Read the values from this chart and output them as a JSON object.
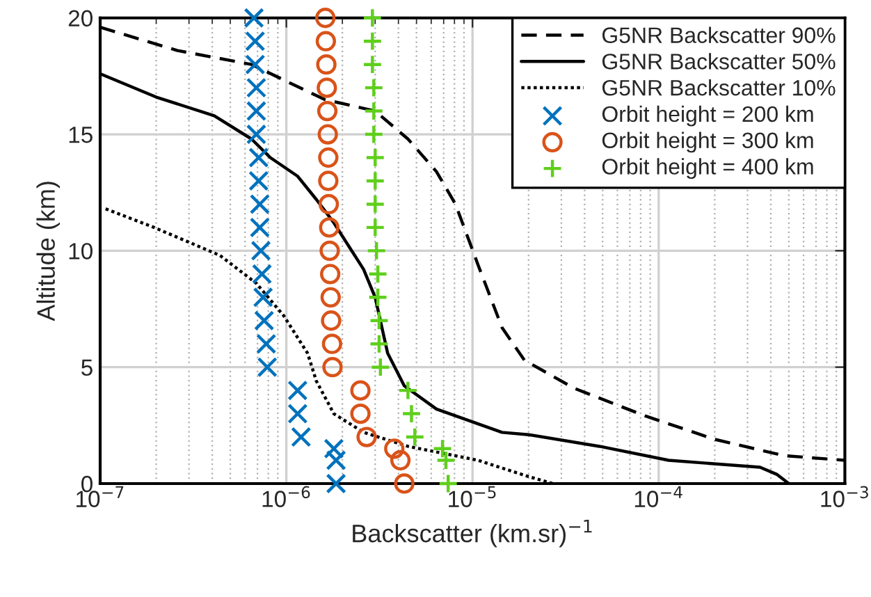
{
  "chart_data": {
    "type": "line",
    "xlabel": "Backscatter (km.sr)$^{−1}$",
    "ylabel": "Altitude (km)",
    "log": "x",
    "grid": true,
    "legend": "top right",
    "xlim": [
      1e-07,
      0.001
    ],
    "ylim": [
      0,
      20
    ],
    "xticks": [
      {
        "value": 1e-07,
        "label": "10$^{−7}$"
      },
      {
        "value": 1e-06,
        "label": "10$^{−6}$"
      },
      {
        "value": 1e-05,
        "label": "10$^{−5}$"
      },
      {
        "value": 0.0001,
        "label": "10$^{−4}$"
      },
      {
        "value": 0.001,
        "label": "10$^{−3}$"
      }
    ],
    "yticks": [
      0,
      5,
      10,
      15,
      20
    ],
    "series": [
      {
        "name": "G5NR Backscatter 90%",
        "line_style": "dashed",
        "color": "#000000",
        "x": [
          1e-07,
          2.6e-07,
          6.5e-07,
          1.6e-06,
          3e-06,
          4.5e-06,
          6.4e-06,
          8.1e-06,
          1.07e-05,
          1.44e-05,
          1.9e-05,
          3.5e-05,
          8.5e-05,
          0.0002,
          0.00047,
          0.001
        ],
        "values": [
          19.6,
          18.6,
          18,
          16.5,
          16,
          14.8,
          13.4,
          12,
          9.4,
          6.7,
          5.3,
          4.1,
          2.9,
          1.9,
          1.2,
          1.0
        ]
      },
      {
        "name": "G5NR Backscatter 50%",
        "line_style": "solid",
        "color": "#000000",
        "x": [
          1e-07,
          2e-07,
          4.1e-07,
          6.5e-07,
          8.2e-07,
          1.15e-06,
          1.45e-06,
          1.8e-06,
          2.6e-06,
          3e-06,
          3.5e-06,
          4.3e-06,
          6.4e-06,
          1.44e-05,
          2e-05,
          4.8e-05,
          0.000113,
          0.00035,
          0.00043,
          0.0005
        ],
        "values": [
          17.6,
          16.6,
          15.8,
          14.8,
          14,
          13.2,
          12.2,
          11.2,
          9.2,
          8,
          5.6,
          4.2,
          3.2,
          2.2,
          2.1,
          1.6,
          1.0,
          0.7,
          0.4,
          0
        ]
      },
      {
        "name": "G5NR Backscatter 10%",
        "line_style": "dotted",
        "color": "#000000",
        "x": [
          1.07e-07,
          1.95e-07,
          4.4e-07,
          6.9e-07,
          9.7e-07,
          1.3e-06,
          1.45e-06,
          1.8e-06,
          2.6e-06,
          4.5e-06,
          1.07e-05,
          2e-05,
          2.7e-05
        ],
        "values": [
          11.8,
          11,
          9.8,
          8.6,
          7.2,
          5.6,
          4.4,
          3,
          2.2,
          1.6,
          1.0,
          0.3,
          0
        ]
      },
      {
        "name": "Orbit height = 200 km",
        "type": "scatter",
        "marker": "cross",
        "color": "#0072bd",
        "x": [
          6.7e-07,
          6.8e-07,
          6.8e-07,
          6.9e-07,
          6.9e-07,
          6.9e-07,
          7.1e-07,
          7.1e-07,
          7.2e-07,
          7.2e-07,
          7.3e-07,
          7.4e-07,
          7.5e-07,
          7.6e-07,
          7.8e-07,
          7.9e-07,
          1.15e-06,
          1.15e-06,
          1.2e-06,
          1.8e-06,
          1.85e-06,
          1.85e-06
        ],
        "values": [
          20,
          19,
          18,
          17,
          16,
          15,
          14,
          13,
          12,
          11,
          10,
          9,
          8,
          7,
          6,
          5,
          4,
          3,
          2,
          1.5,
          1,
          0
        ]
      },
      {
        "name": "Orbit height = 300 km",
        "type": "scatter",
        "marker": "circle",
        "color": "#d95319",
        "x": [
          1.62e-06,
          1.63e-06,
          1.64e-06,
          1.65e-06,
          1.66e-06,
          1.67e-06,
          1.68e-06,
          1.68e-06,
          1.69e-06,
          1.7e-06,
          1.71e-06,
          1.72e-06,
          1.73e-06,
          1.74e-06,
          1.76e-06,
          1.77e-06,
          2.5e-06,
          2.5e-06,
          2.7e-06,
          3.8e-06,
          4.1e-06,
          4.3e-06
        ],
        "values": [
          20,
          19,
          18,
          17,
          16,
          15,
          14,
          13,
          12,
          11,
          10,
          9,
          8,
          7,
          6,
          5,
          4,
          3,
          2,
          1.5,
          1,
          0
        ]
      },
      {
        "name": "Orbit height = 400 km",
        "type": "scatter",
        "marker": "plus",
        "color": "#5fcf1c",
        "x": [
          2.9e-06,
          2.9e-06,
          2.9e-06,
          2.95e-06,
          2.95e-06,
          2.95e-06,
          3e-06,
          3e-06,
          3e-06,
          3e-06,
          3.05e-06,
          3.1e-06,
          3.1e-06,
          3.15e-06,
          3.15e-06,
          3.2e-06,
          4.5e-06,
          4.7e-06,
          4.9e-06,
          6.9e-06,
          7.2e-06,
          7.4e-06
        ],
        "values": [
          20,
          19,
          18,
          17,
          16,
          15,
          14,
          13,
          12,
          11,
          10,
          9,
          8,
          7,
          6,
          5,
          4,
          3,
          2,
          1.5,
          1,
          0
        ]
      }
    ]
  }
}
